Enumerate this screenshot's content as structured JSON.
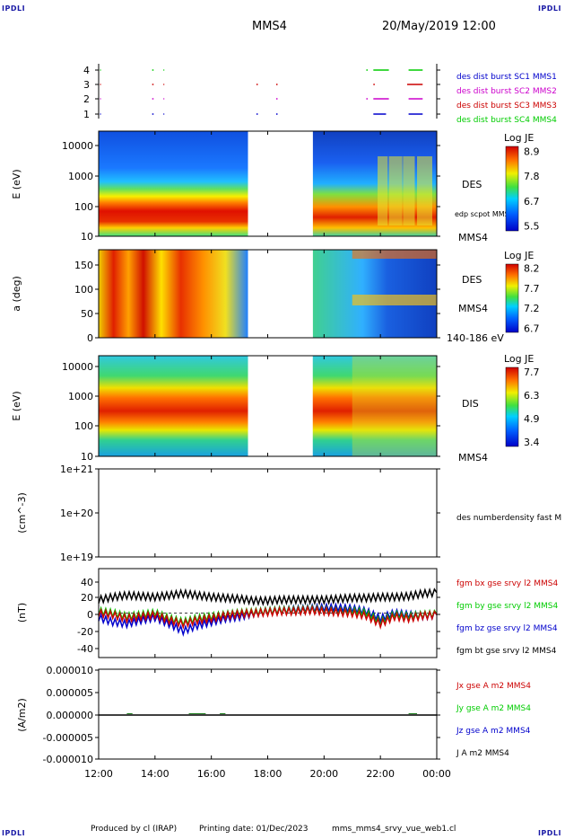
{
  "header": {
    "corner_tl": "IPDLI",
    "corner_tr": "IPDLI",
    "corner_bl": "IPDLI",
    "corner_br": "IPDLI",
    "spacecraft": "MMS4",
    "date": "20/May/2019 12:00"
  },
  "footer": {
    "produced": "Produced by cl (IRAP)",
    "printing": "Printing date: 01/Dec/2023",
    "file": "mms_mms4_srvy_vue_web1.cl"
  },
  "chart_data": [
    {
      "type": "scatter",
      "id": "burst",
      "yticks": [
        "4",
        "3",
        "2",
        "1"
      ],
      "legend": [
        {
          "text": "des dist burst SC1 MMS1",
          "color": "#0000cc"
        },
        {
          "text": "des dist burst SC2 MMS2",
          "color": "#cc00cc"
        },
        {
          "text": "des dist burst SC3 MMS3",
          "color": "#cc0000"
        },
        {
          "text": "des dist burst SC4 MMS4",
          "color": "#00cc00"
        }
      ],
      "series": [
        {
          "level": 4,
          "color": "#00cc00",
          "segments": [
            [
              12.05,
              12.08
            ],
            [
              13.9,
              13.95
            ],
            [
              14.3,
              14.33
            ],
            [
              21.5,
              21.55
            ],
            [
              21.75,
              22.3
            ],
            [
              23.0,
              23.5
            ]
          ]
        },
        {
          "level": 3,
          "color": "#cc0000",
          "segments": [
            [
              12.05,
              12.08
            ],
            [
              13.9,
              13.95
            ],
            [
              14.3,
              14.33
            ],
            [
              17.6,
              17.65
            ],
            [
              18.3,
              18.35
            ],
            [
              21.75,
              21.8
            ],
            [
              22.95,
              23.5
            ]
          ]
        },
        {
          "level": 2,
          "color": "#cc00cc",
          "segments": [
            [
              12.05,
              12.08
            ],
            [
              13.9,
              13.95
            ],
            [
              14.3,
              14.33
            ],
            [
              18.3,
              18.35
            ],
            [
              21.5,
              21.55
            ],
            [
              21.75,
              22.3
            ],
            [
              23.0,
              23.5
            ]
          ]
        },
        {
          "level": 1,
          "color": "#0000cc",
          "segments": [
            [
              12.05,
              12.08
            ],
            [
              13.9,
              13.95
            ],
            [
              14.3,
              14.33
            ],
            [
              17.6,
              17.65
            ],
            [
              18.3,
              18.35
            ],
            [
              21.75,
              22.2
            ],
            [
              23.0,
              23.5
            ]
          ]
        }
      ]
    },
    {
      "type": "heatmap",
      "id": "des_energy",
      "ylabel": "E (eV)",
      "yscale": "log",
      "ylim": [
        10,
        30000
      ],
      "yticks": [
        "10000",
        "1000",
        "100",
        "10"
      ],
      "label": "DES",
      "label2": "edp scpot MMS4",
      "label3": "MMS4",
      "colorbar": {
        "title": "Log JE",
        "ticks": [
          "8.9",
          "7.8",
          "6.7",
          "5.5"
        ]
      },
      "gap": [
        17.3,
        19.6
      ]
    },
    {
      "type": "heatmap",
      "id": "des_pitch",
      "ylabel": "a (deg)",
      "ylim": [
        0,
        180
      ],
      "yticks": [
        "150",
        "100",
        "50",
        "0"
      ],
      "label": "DES",
      "label2": "MMS4",
      "label3": "140-186 eV",
      "colorbar": {
        "title": "Log JE",
        "ticks": [
          "8.2",
          "7.7",
          "7.2",
          "6.7"
        ]
      },
      "gap": [
        17.3,
        19.6
      ]
    },
    {
      "type": "heatmap",
      "id": "dis_energy",
      "ylabel": "E (eV)",
      "yscale": "log",
      "ylim": [
        10,
        30000
      ],
      "yticks": [
        "10000",
        "1000",
        "100",
        "10"
      ],
      "label": "DIS",
      "label3": "MMS4",
      "colorbar": {
        "title": "Log JE",
        "ticks": [
          "7.7",
          "6.3",
          "4.9",
          "3.4"
        ]
      },
      "gap": [
        17.3,
        19.6
      ]
    },
    {
      "type": "line",
      "id": "density",
      "ylabel": "(cm^-3)",
      "yscale": "log",
      "ylim": [
        1e+19,
        1e+21
      ],
      "yticks": [
        "1e+21",
        "1e+20",
        "1e+19"
      ],
      "legend": [
        {
          "text": "des numberdensity fast M",
          "color": "#000000"
        }
      ],
      "series": []
    },
    {
      "type": "line",
      "id": "bfield",
      "ylabel": "(nT)",
      "ylim": [
        -50,
        50
      ],
      "yticks": [
        "40",
        "20",
        "0",
        "-20",
        "-40"
      ],
      "legend": [
        {
          "text": "fgm bx gse srvy l2 MMS4",
          "color": "#cc0000"
        },
        {
          "text": "fgm by gse srvy l2 MMS4",
          "color": "#00cc00"
        },
        {
          "text": "fgm bz gse srvy l2 MMS4",
          "color": "#0000cc"
        },
        {
          "text": "fgm bt gse srvy l2 MMS4",
          "color": "#000000"
        }
      ],
      "series": [
        {
          "name": "fgm bt gse srvy l2 MMS4",
          "color": "#000000",
          "x": [
            12,
            12.5,
            13,
            13.5,
            14,
            14.5,
            15,
            15.5,
            16,
            16.5,
            17,
            17.5,
            18,
            18.5,
            19,
            19.5,
            20,
            20.5,
            21,
            21.5,
            22,
            22.5,
            23,
            23.5,
            24
          ],
          "y": [
            15,
            18,
            20,
            19,
            18,
            20,
            22,
            20,
            18,
            17,
            16,
            14,
            14,
            15,
            15,
            15,
            15,
            16,
            17,
            17,
            18,
            18,
            19,
            22,
            23
          ]
        },
        {
          "name": "fgm bz gse srvy l2 MMS4",
          "color": "#0000cc",
          "x": [
            12,
            12.5,
            13,
            13.5,
            14,
            14.5,
            15,
            15.5,
            16,
            16.5,
            17,
            17.5,
            18,
            18.5,
            19,
            19.5,
            20,
            20.5,
            21,
            21.5,
            22,
            22.5,
            23,
            23.5,
            24
          ],
          "y": [
            -5,
            -10,
            -12,
            -8,
            -5,
            -12,
            -20,
            -14,
            -10,
            -6,
            -4,
            0,
            2,
            3,
            4,
            5,
            6,
            6,
            5,
            2,
            -6,
            0,
            -2,
            -3,
            -2
          ]
        },
        {
          "name": "fgm by gse srvy l2 MMS4",
          "color": "#00cc00",
          "x": [
            12,
            12.5,
            13,
            13.5,
            14,
            14.5,
            15,
            15.5,
            16,
            16.5,
            17,
            17.5,
            18,
            18.5,
            19,
            19.5,
            20,
            20.5,
            21,
            21.5,
            22,
            22.5,
            23,
            23.5,
            24
          ],
          "y": [
            2,
            0,
            -4,
            -2,
            0,
            -6,
            -10,
            -6,
            -4,
            -2,
            0,
            1,
            2,
            3,
            3,
            4,
            3,
            2,
            2,
            0,
            -10,
            -2,
            -4,
            -2,
            -1
          ]
        },
        {
          "name": "fgm bx gse srvy l2 MMS4",
          "color": "#cc0000",
          "x": [
            12,
            12.5,
            13,
            13.5,
            14,
            14.5,
            15,
            15.5,
            16,
            16.5,
            17,
            17.5,
            18,
            18.5,
            19,
            19.5,
            20,
            20.5,
            21,
            21.5,
            22,
            22.5,
            23,
            23.5,
            24
          ],
          "y": [
            0,
            -2,
            -6,
            -4,
            -2,
            -8,
            -12,
            -8,
            -6,
            -3,
            -1,
            0,
            1,
            2,
            2,
            3,
            2,
            1,
            0,
            -3,
            -12,
            -4,
            -6,
            -3,
            -2
          ]
        }
      ]
    },
    {
      "type": "line",
      "id": "current",
      "ylabel": "(A/m2)",
      "ylim": [
        -0.0001,
        0.0001
      ],
      "yticks": [
        "0.000010",
        "0.000005",
        "0.000000",
        "-0.000005",
        "-0.000010"
      ],
      "legend": [
        {
          "text": "Jx gse A m2 MMS4",
          "color": "#cc0000"
        },
        {
          "text": "Jy gse A m2 MMS4",
          "color": "#00cc00"
        },
        {
          "text": "Jz gse A m2 MMS4",
          "color": "#0000cc"
        },
        {
          "text": "J A m2 MMS4",
          "color": "#000000"
        }
      ],
      "series": [
        {
          "name": "J A m2 MMS4",
          "color": "#000000",
          "x": [
            12,
            24
          ],
          "y": [
            0,
            0
          ]
        }
      ]
    }
  ],
  "xaxis": {
    "ticks": [
      "12:00",
      "14:00",
      "16:00",
      "18:00",
      "20:00",
      "22:00",
      "00:00"
    ],
    "range": [
      12,
      24
    ]
  }
}
